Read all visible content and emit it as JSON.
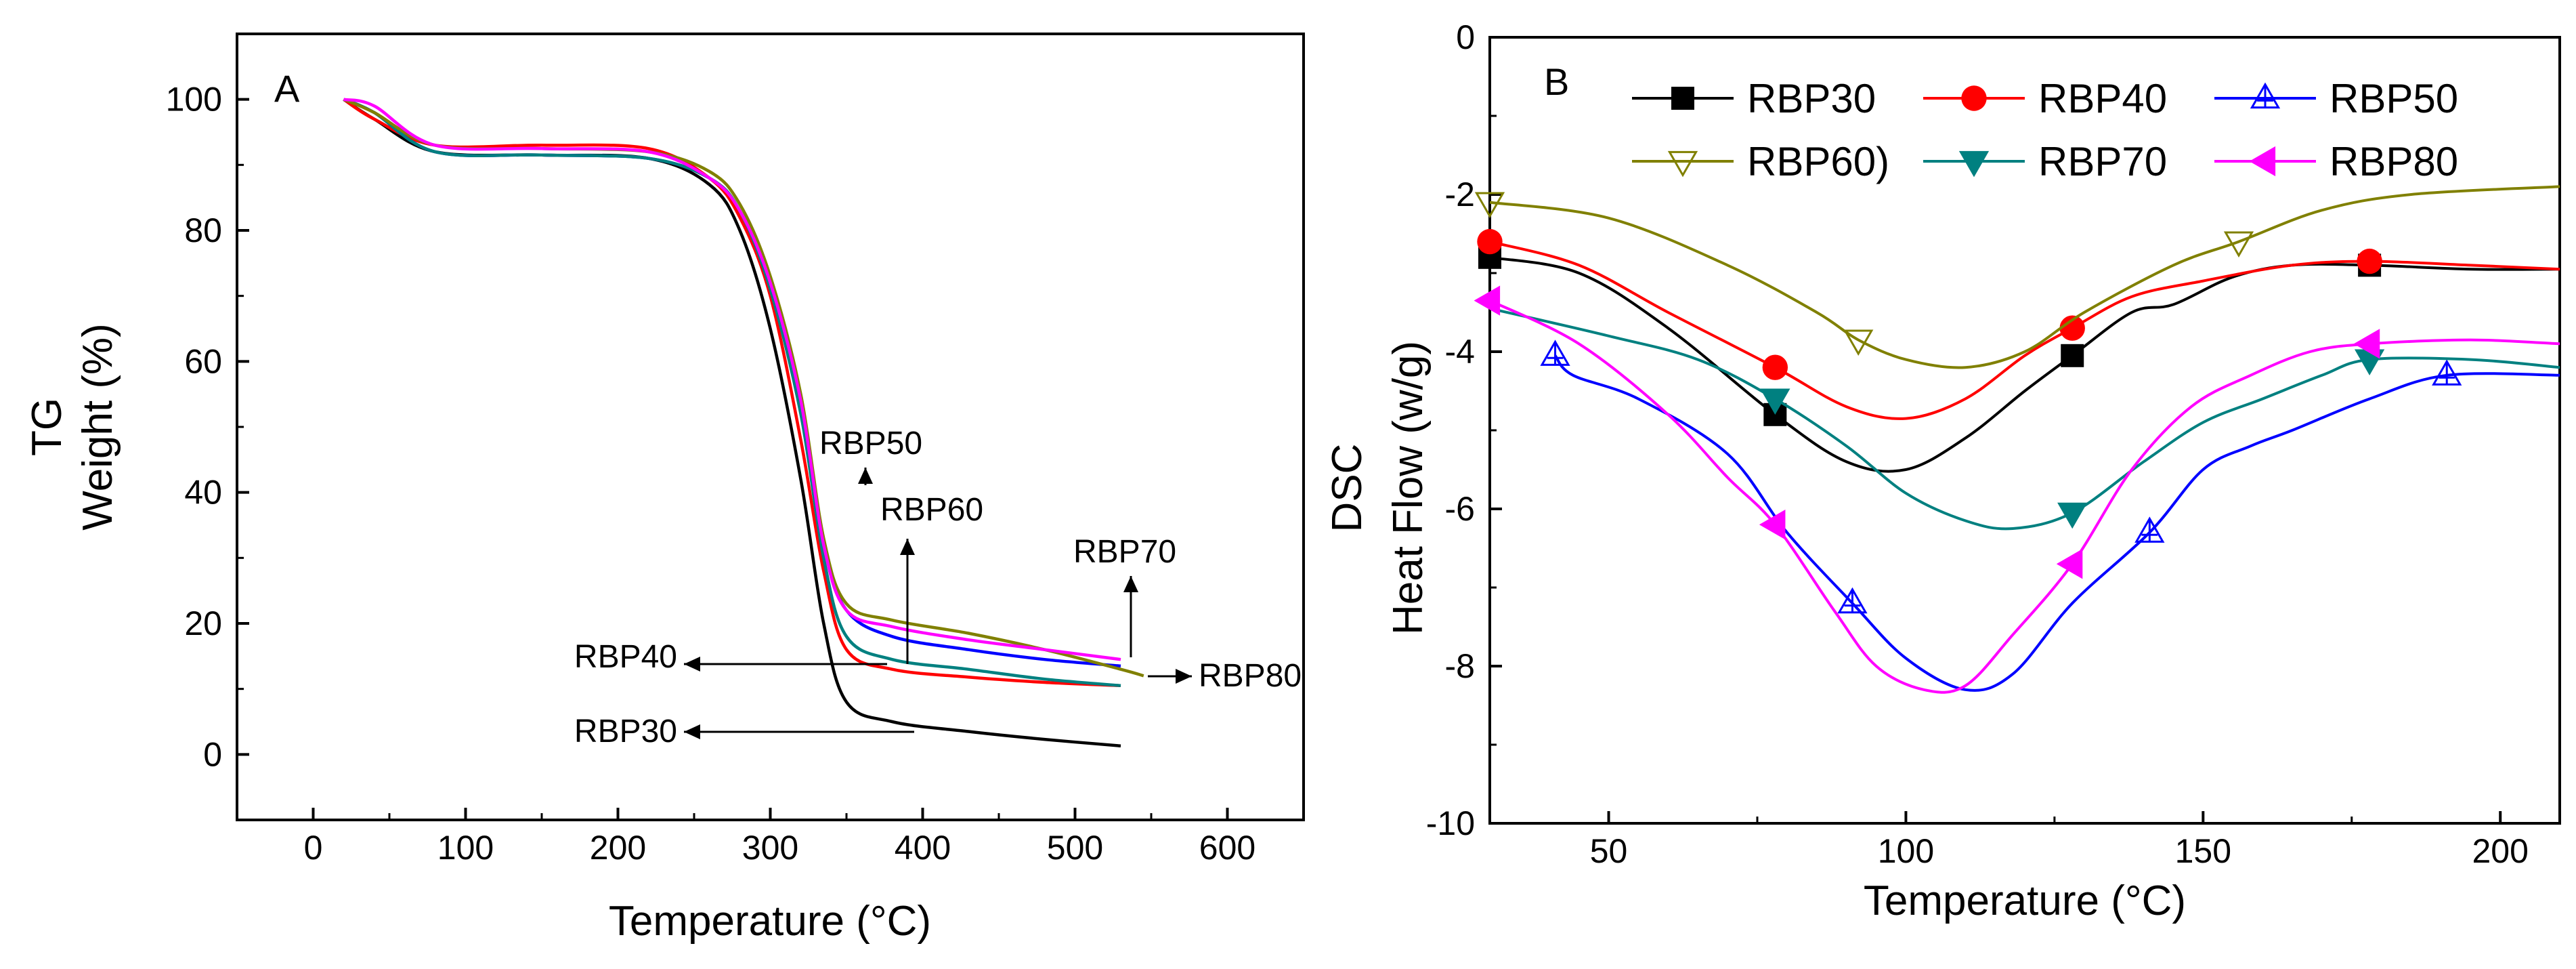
{
  "chart_data": [
    {
      "type": "line",
      "panel_label": "A",
      "xlabel": "Temperature (°C)",
      "ylabel": [
        "TG",
        "Weight (%)"
      ],
      "xlim": [
        -50,
        650
      ],
      "ylim": [
        -10,
        110
      ],
      "xticks": [
        0,
        100,
        200,
        300,
        400,
        500,
        600
      ],
      "yticks": [
        0,
        20,
        40,
        60,
        80,
        100
      ],
      "series": [
        {
          "name": "RBP30",
          "color": "#000000",
          "points": [
            [
              20,
              100
            ],
            [
              40,
              97
            ],
            [
              80,
              92
            ],
            [
              150,
              91.5
            ],
            [
              220,
              91
            ],
            [
              260,
              87
            ],
            [
              280,
              80
            ],
            [
              300,
              65
            ],
            [
              320,
              42
            ],
            [
              335,
              20
            ],
            [
              350,
              8
            ],
            [
              380,
              5
            ],
            [
              430,
              3.5
            ],
            [
              480,
              2.3
            ],
            [
              530,
              1.3
            ]
          ]
        },
        {
          "name": "RBP40",
          "color": "#ff0000",
          "points": [
            [
              20,
              100
            ],
            [
              40,
              97
            ],
            [
              80,
              93
            ],
            [
              150,
              93
            ],
            [
              220,
              92.5
            ],
            [
              260,
              88
            ],
            [
              280,
              82
            ],
            [
              300,
              70
            ],
            [
              320,
              48
            ],
            [
              335,
              28
            ],
            [
              350,
              16
            ],
            [
              380,
              13
            ],
            [
              430,
              11.8
            ],
            [
              480,
              11
            ],
            [
              530,
              10.5
            ]
          ]
        },
        {
          "name": "RBP50",
          "color": "#0000ff",
          "points": [
            [
              20,
              100
            ],
            [
              40,
              98
            ],
            [
              80,
              92
            ],
            [
              150,
              91.5
            ],
            [
              220,
              91
            ],
            [
              260,
              88
            ],
            [
              280,
              83
            ],
            [
              300,
              72
            ],
            [
              320,
              53
            ],
            [
              335,
              32
            ],
            [
              350,
              22
            ],
            [
              380,
              18
            ],
            [
              430,
              16
            ],
            [
              480,
              14.5
            ],
            [
              530,
              13.5
            ]
          ]
        },
        {
          "name": "RBP60",
          "color": "#008080",
          "points": [
            [
              20,
              100
            ],
            [
              40,
              98
            ],
            [
              80,
              92
            ],
            [
              150,
              91.5
            ],
            [
              220,
              91
            ],
            [
              260,
              88
            ],
            [
              280,
              83
            ],
            [
              300,
              71
            ],
            [
              320,
              52
            ],
            [
              335,
              30
            ],
            [
              350,
              18
            ],
            [
              380,
              14.5
            ],
            [
              430,
              13
            ],
            [
              480,
              11.5
            ],
            [
              530,
              10.5
            ]
          ]
        },
        {
          "name": "RBP70",
          "color": "#808000",
          "points": [
            [
              20,
              100
            ],
            [
              40,
              98
            ],
            [
              80,
              93
            ],
            [
              150,
              92.5
            ],
            [
              220,
              92
            ],
            [
              260,
              89
            ],
            [
              280,
              84
            ],
            [
              300,
              73
            ],
            [
              320,
              55
            ],
            [
              335,
              33
            ],
            [
              350,
              23
            ],
            [
              380,
              20.5
            ],
            [
              430,
              18.5
            ],
            [
              480,
              16
            ],
            [
              530,
              13
            ],
            [
              545,
              12
            ]
          ]
        },
        {
          "name": "RBP80",
          "color": "#ff00ff",
          "points": [
            [
              20,
              100
            ],
            [
              40,
              99
            ],
            [
              80,
              93
            ],
            [
              150,
              92.5
            ],
            [
              220,
              92
            ],
            [
              260,
              88
            ],
            [
              280,
              83
            ],
            [
              300,
              72
            ],
            [
              320,
              54
            ],
            [
              335,
              32
            ],
            [
              350,
              22
            ],
            [
              380,
              19.5
            ],
            [
              430,
              17.5
            ],
            [
              480,
              16
            ],
            [
              530,
              14.5
            ]
          ]
        }
      ],
      "annotations": [
        {
          "text": "RBP50",
          "data": [
            343,
            48
          ]
        },
        {
          "text": "RBP60",
          "data": [
            390,
            34
          ]
        },
        {
          "text": "RBP70",
          "data": [
            560,
            30
          ]
        },
        {
          "text": "RBP40",
          "data": [
            235,
            15.5
          ]
        },
        {
          "text": "RBP80",
          "data": [
            600,
            12
          ]
        },
        {
          "text": "RBP30",
          "data": [
            223,
            4
          ]
        }
      ]
    },
    {
      "type": "line",
      "panel_label": "B",
      "xlabel": "Temperature (°C)",
      "ylabel": [
        "DSC",
        "Heat Flow (w/g)"
      ],
      "xlim": [
        30,
        210
      ],
      "ylim": [
        -10,
        0
      ],
      "xticks": [
        50,
        100,
        150,
        200
      ],
      "yticks": [
        0,
        -2,
        -4,
        -6,
        -8,
        -10
      ],
      "series": [
        {
          "name": "RBP30",
          "color": "#000000",
          "marker": "square",
          "marker_x": [
            30,
            78,
            128,
            178
          ],
          "points": [
            [
              30,
              -2.8
            ],
            [
              45,
              -3.0
            ],
            [
              60,
              -3.7
            ],
            [
              78,
              -4.8
            ],
            [
              90,
              -5.4
            ],
            [
              100,
              -5.5
            ],
            [
              110,
              -5.1
            ],
            [
              120,
              -4.5
            ],
            [
              128,
              -4.05
            ],
            [
              138,
              -3.5
            ],
            [
              145,
              -3.4
            ],
            [
              155,
              -3.05
            ],
            [
              165,
              -2.9
            ],
            [
              178,
              -2.9
            ],
            [
              195,
              -2.95
            ],
            [
              210,
              -2.95
            ]
          ]
        },
        {
          "name": "RBP40",
          "color": "#ff0000",
          "marker": "circle",
          "marker_x": [
            30,
            78,
            128,
            178
          ],
          "points": [
            [
              30,
              -2.6
            ],
            [
              45,
              -2.9
            ],
            [
              60,
              -3.5
            ],
            [
              78,
              -4.2
            ],
            [
              90,
              -4.7
            ],
            [
              100,
              -4.85
            ],
            [
              110,
              -4.6
            ],
            [
              120,
              -4.05
            ],
            [
              128,
              -3.7
            ],
            [
              138,
              -3.3
            ],
            [
              150,
              -3.1
            ],
            [
              165,
              -2.9
            ],
            [
              178,
              -2.85
            ],
            [
              195,
              -2.9
            ],
            [
              210,
              -2.95
            ]
          ]
        },
        {
          "name": "RBP50",
          "color": "#0000ff",
          "marker": "triangle-up-open",
          "marker_x": [
            41,
            91,
            141,
            191
          ],
          "points": [
            [
              41,
              -4.05
            ],
            [
              44,
              -4.3
            ],
            [
              55,
              -4.6
            ],
            [
              70,
              -5.3
            ],
            [
              80,
              -6.3
            ],
            [
              91,
              -7.2
            ],
            [
              100,
              -7.9
            ],
            [
              110,
              -8.3
            ],
            [
              118,
              -8.1
            ],
            [
              128,
              -7.2
            ],
            [
              141,
              -6.3
            ],
            [
              150,
              -5.5
            ],
            [
              158,
              -5.2
            ],
            [
              165,
              -5.0
            ],
            [
              178,
              -4.6
            ],
            [
              191,
              -4.3
            ],
            [
              210,
              -4.3
            ]
          ]
        },
        {
          "name": "RBP60)",
          "color": "#808000",
          "marker": "triangle-down-open",
          "marker_x": [
            30,
            92,
            156
          ],
          "points": [
            [
              30,
              -2.1
            ],
            [
              50,
              -2.3
            ],
            [
              70,
              -2.9
            ],
            [
              85,
              -3.5
            ],
            [
              92,
              -3.85
            ],
            [
              100,
              -4.1
            ],
            [
              110,
              -4.2
            ],
            [
              120,
              -4.0
            ],
            [
              130,
              -3.5
            ],
            [
              145,
              -2.9
            ],
            [
              156,
              -2.6
            ],
            [
              170,
              -2.2
            ],
            [
              185,
              -2.0
            ],
            [
              210,
              -1.9
            ]
          ]
        },
        {
          "name": "RBP70",
          "color": "#008080",
          "marker": "triangle-down",
          "marker_x": [
            78,
            128,
            178
          ],
          "points": [
            [
              30,
              -3.45
            ],
            [
              50,
              -3.8
            ],
            [
              65,
              -4.1
            ],
            [
              78,
              -4.6
            ],
            [
              90,
              -5.2
            ],
            [
              100,
              -5.8
            ],
            [
              110,
              -6.15
            ],
            [
              118,
              -6.25
            ],
            [
              128,
              -6.05
            ],
            [
              140,
              -5.4
            ],
            [
              150,
              -4.9
            ],
            [
              160,
              -4.6
            ],
            [
              170,
              -4.3
            ],
            [
              178,
              -4.1
            ],
            [
              195,
              -4.1
            ],
            [
              210,
              -4.2
            ]
          ]
        },
        {
          "name": "RBP80",
          "color": "#ff00ff",
          "marker": "triangle-left",
          "marker_x": [
            30,
            78,
            128,
            178
          ],
          "points": [
            [
              30,
              -3.35
            ],
            [
              45,
              -3.9
            ],
            [
              60,
              -4.8
            ],
            [
              70,
              -5.6
            ],
            [
              78,
              -6.2
            ],
            [
              88,
              -7.3
            ],
            [
              95,
              -8.0
            ],
            [
              103,
              -8.3
            ],
            [
              110,
              -8.25
            ],
            [
              118,
              -7.6
            ],
            [
              128,
              -6.7
            ],
            [
              138,
              -5.5
            ],
            [
              148,
              -4.7
            ],
            [
              158,
              -4.3
            ],
            [
              168,
              -4.0
            ],
            [
              178,
              -3.9
            ],
            [
              195,
              -3.85
            ],
            [
              210,
              -3.9
            ]
          ]
        }
      ],
      "legend": {
        "position": "top",
        "rows": [
          [
            "RBP30",
            "RBP40",
            "RBP50"
          ],
          [
            "RBP60)",
            "RBP70",
            "RBP80"
          ]
        ]
      }
    }
  ]
}
